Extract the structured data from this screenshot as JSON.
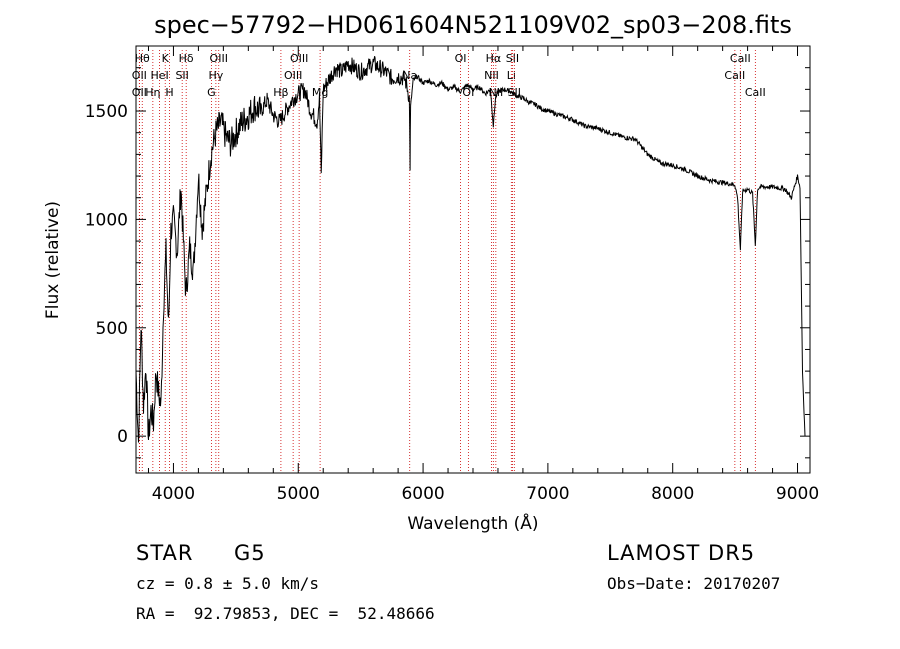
{
  "chart_data": {
    "type": "line",
    "title": "spec−57792−HD061604N521109V02_sp03−208.fits",
    "xlabel": "Wavelength (Å)",
    "ylabel": "Flux (relative)",
    "xlim": [
      3700,
      9100
    ],
    "ylim": [
      -170,
      1800
    ],
    "x_ticks": [
      4000,
      5000,
      6000,
      7000,
      8000,
      9000
    ],
    "y_ticks": [
      0,
      500,
      1000,
      1500
    ],
    "grid": false,
    "legend": "none",
    "line_color": "#000000",
    "marker_color": "#cc0000",
    "series": [
      {
        "x": [
          3700,
          3720,
          3740,
          3760,
          3780,
          3800,
          3820,
          3840,
          3860,
          3880,
          3900,
          3920,
          3940,
          3960,
          3980,
          4000,
          4030,
          4060,
          4100,
          4130,
          4160,
          4200,
          4230,
          4260,
          4300,
          4340,
          4380,
          4420,
          4460,
          4500,
          4550,
          4600,
          4650,
          4700,
          4750,
          4800,
          4850,
          4900,
          4950,
          5000,
          5050,
          5100,
          5150,
          5170,
          5184,
          5200,
          5250,
          5300,
          5350,
          5400,
          5450,
          5500,
          5550,
          5600,
          5650,
          5700,
          5750,
          5800,
          5850,
          5870,
          5890,
          5896,
          5900,
          5920,
          5950,
          6000,
          6050,
          6100,
          6150,
          6200,
          6250,
          6300,
          6350,
          6400,
          6450,
          6500,
          6540,
          6563,
          6580,
          6600,
          6650,
          6700,
          6750,
          6800,
          6850,
          6900,
          6950,
          7000,
          7100,
          7200,
          7300,
          7400,
          7500,
          7600,
          7700,
          7800,
          7850,
          7900,
          8000,
          8100,
          8200,
          8300,
          8400,
          8498,
          8520,
          8542,
          8560,
          8600,
          8640,
          8662,
          8680,
          8700,
          8800,
          8900,
          8950,
          9000,
          9020,
          9040,
          9060
        ],
        "y": [
          300,
          -30,
          520,
          140,
          330,
          -10,
          120,
          60,
          300,
          200,
          140,
          600,
          850,
          500,
          950,
          1000,
          850,
          1150,
          650,
          870,
          760,
          1200,
          960,
          1100,
          1300,
          1400,
          1450,
          1380,
          1350,
          1400,
          1450,
          1480,
          1520,
          1500,
          1550,
          1480,
          1450,
          1500,
          1550,
          1580,
          1600,
          1500,
          1450,
          1560,
          1200,
          1600,
          1650,
          1700,
          1680,
          1720,
          1700,
          1680,
          1700,
          1720,
          1700,
          1680,
          1650,
          1660,
          1650,
          1620,
          1560,
          1250,
          1520,
          1640,
          1660,
          1630,
          1640,
          1620,
          1630,
          1600,
          1610,
          1590,
          1620,
          1600,
          1610,
          1580,
          1600,
          1430,
          1560,
          1590,
          1600,
          1590,
          1570,
          1560,
          1540,
          1530,
          1510,
          1500,
          1480,
          1460,
          1430,
          1420,
          1400,
          1380,
          1370,
          1300,
          1280,
          1260,
          1250,
          1230,
          1200,
          1180,
          1170,
          1160,
          1100,
          860,
          1130,
          1140,
          1120,
          880,
          1140,
          1150,
          1150,
          1140,
          1100,
          1200,
          1150,
          300,
          0
        ]
      }
    ],
    "lines": [
      {
        "x": 3750,
        "label": "Hθ",
        "row": 0
      },
      {
        "x": 3727,
        "label": "OII",
        "row": 1
      },
      {
        "x": 3727,
        "label": "OII",
        "row": 2
      },
      {
        "x": 3835,
        "label": "Hη",
        "row": 2
      },
      {
        "x": 3889,
        "label": "HeI",
        "row": 1
      },
      {
        "x": 3934,
        "label": "K",
        "row": 0
      },
      {
        "x": 3969,
        "label": "H",
        "row": 2
      },
      {
        "x": 4070,
        "label": "SII",
        "row": 1
      },
      {
        "x": 4102,
        "label": "Hδ",
        "row": 0
      },
      {
        "x": 4304,
        "label": "G",
        "row": 2
      },
      {
        "x": 4340,
        "label": "Hγ",
        "row": 1
      },
      {
        "x": 4363,
        "label": "OIII",
        "row": 0
      },
      {
        "x": 4861,
        "label": "Hβ",
        "row": 2
      },
      {
        "x": 4959,
        "label": "OIII",
        "row": 1
      },
      {
        "x": 5007,
        "label": "OIII",
        "row": 0
      },
      {
        "x": 5175,
        "label": "Mg",
        "row": 2
      },
      {
        "x": 5893,
        "label": "Na",
        "row": 1
      },
      {
        "x": 6300,
        "label": "OI",
        "row": 0
      },
      {
        "x": 6363,
        "label": "OI",
        "row": 2
      },
      {
        "x": 6548,
        "label": "NII",
        "row": 1
      },
      {
        "x": 6563,
        "label": "Hα",
        "row": 0
      },
      {
        "x": 6583,
        "label": "NII",
        "row": 2
      },
      {
        "x": 6707,
        "label": "Li",
        "row": 1
      },
      {
        "x": 6716,
        "label": "SII",
        "row": 0
      },
      {
        "x": 6731,
        "label": "SII",
        "row": 2
      },
      {
        "x": 8498,
        "label": "CaII",
        "row": 1
      },
      {
        "x": 8542,
        "label": "CaII",
        "row": 0
      },
      {
        "x": 8662,
        "label": "CaII",
        "row": 2
      }
    ]
  },
  "info": {
    "class_label": "STAR",
    "subclass": "G5",
    "survey": "LAMOST DR5",
    "cz": "cz = 0.8 ± 5.0 km/s",
    "obs_date": "Obs−Date: 20170207",
    "coords": "RA =  92.79853, DEC =  52.48666"
  }
}
